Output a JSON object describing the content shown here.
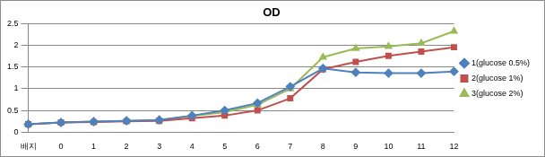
{
  "chart_data": {
    "type": "line",
    "title": "OD",
    "categories": [
      "배지",
      "0",
      "1",
      "2",
      "3",
      "4",
      "5",
      "6",
      "7",
      "8",
      "9",
      "10",
      "11",
      "12"
    ],
    "series": [
      {
        "name": "1(glucose 0.5%)",
        "color": "#4f81bd",
        "marker": "diamond",
        "values": [
          0.18,
          0.22,
          0.24,
          0.26,
          0.28,
          0.38,
          0.5,
          0.67,
          1.05,
          1.47,
          1.38,
          1.36,
          1.36,
          1.4
        ]
      },
      {
        "name": "2(glucose 1%)",
        "color": "#c0504d",
        "marker": "square",
        "values": [
          0.18,
          0.22,
          0.23,
          0.25,
          0.26,
          0.32,
          0.38,
          0.5,
          0.78,
          1.45,
          1.62,
          1.76,
          1.86,
          1.96
        ]
      },
      {
        "name": "3(glucose 2%)",
        "color": "#9bbb59",
        "marker": "triangle",
        "values": [
          0.18,
          0.22,
          0.24,
          0.26,
          0.28,
          0.37,
          0.46,
          0.63,
          1.0,
          1.73,
          1.93,
          1.98,
          2.05,
          2.33
        ]
      }
    ],
    "ylim": [
      0,
      2.5
    ],
    "yticks": [
      0,
      0.5,
      1,
      1.5,
      2,
      2.5
    ],
    "grid": true,
    "legend": "right"
  }
}
